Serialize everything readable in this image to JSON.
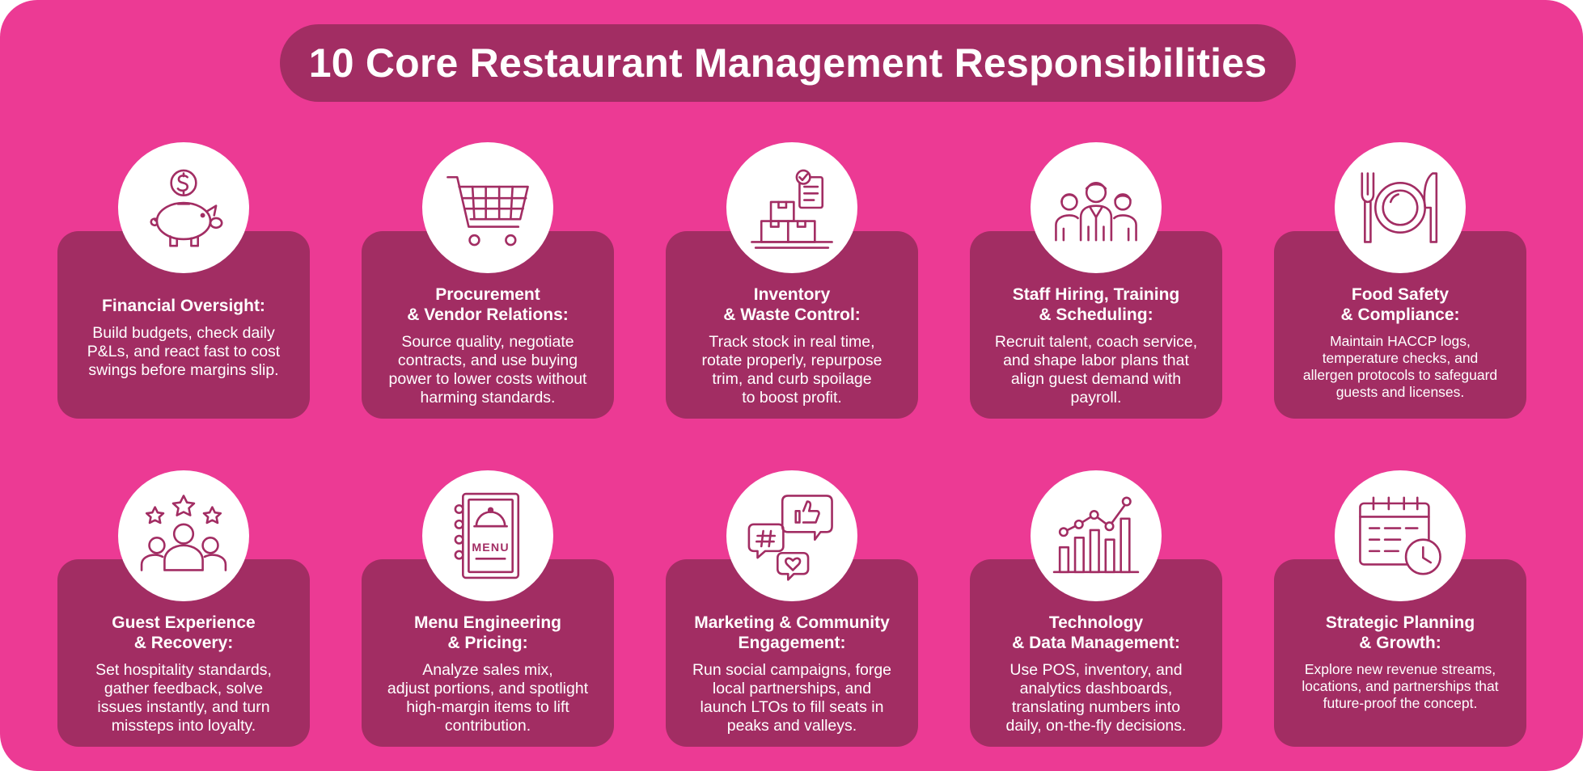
{
  "title": "10 Core Restaurant Management Responsibilities",
  "colors": {
    "background": "#ec3a94",
    "panel": "#a22d63",
    "icon_fill": "#ffffff",
    "text": "#ffffff"
  },
  "cards": [
    {
      "icon": "piggy-bank-icon",
      "title": "Financial Oversight:",
      "description": "Build budgets, check daily\nP&Ls, and react fast to cost\nswings before margins slip."
    },
    {
      "icon": "shopping-cart-icon",
      "title": "Procurement\n& Vendor Relations:",
      "description": "Source quality, negotiate\ncontracts, and use buying\npower to lower costs without\nharming standards."
    },
    {
      "icon": "inventory-boxes-icon",
      "title": "Inventory\n& Waste Control:",
      "description": "Track stock in real time,\nrotate properly, repurpose\ntrim, and curb spoilage\nto boost profit."
    },
    {
      "icon": "staff-team-icon",
      "title": "Staff Hiring, Training\n& Scheduling:",
      "description": "Recruit talent, coach service,\nand shape labor plans that\nalign guest demand with\npayroll."
    },
    {
      "icon": "plate-fork-knife-icon",
      "title": "Food Safety\n& Compliance:",
      "description": "Maintain HACCP logs,\ntemperature checks, and\nallergen protocols to safeguard\nguests and licenses."
    },
    {
      "icon": "guest-stars-icon",
      "title": "Guest Experience\n& Recovery:",
      "description": "Set hospitality standards,\ngather feedback, solve\nissues instantly, and turn\nmissteps into loyalty."
    },
    {
      "icon": "menu-book-icon",
      "title": "Menu Engineering\n& Pricing:",
      "description": "Analyze sales mix,\nadjust portions, and spotlight\nhigh-margin items to lift\ncontribution.",
      "icon_label": "MENU"
    },
    {
      "icon": "social-chat-icon",
      "title": "Marketing & Community\nEngagement:",
      "description": "Run social campaigns, forge\nlocal partnerships, and\nlaunch LTOs to fill seats in\npeaks and valleys."
    },
    {
      "icon": "analytics-chart-icon",
      "title": "Technology\n& Data Management:",
      "description": "Use POS, inventory, and\nanalytics dashboards,\ntranslating numbers into\ndaily, on-the-fly decisions."
    },
    {
      "icon": "calendar-clock-icon",
      "title": "Strategic Planning\n& Growth:",
      "description": "Explore new revenue streams,\nlocations, and partnerships that\nfuture-proof the concept."
    }
  ]
}
